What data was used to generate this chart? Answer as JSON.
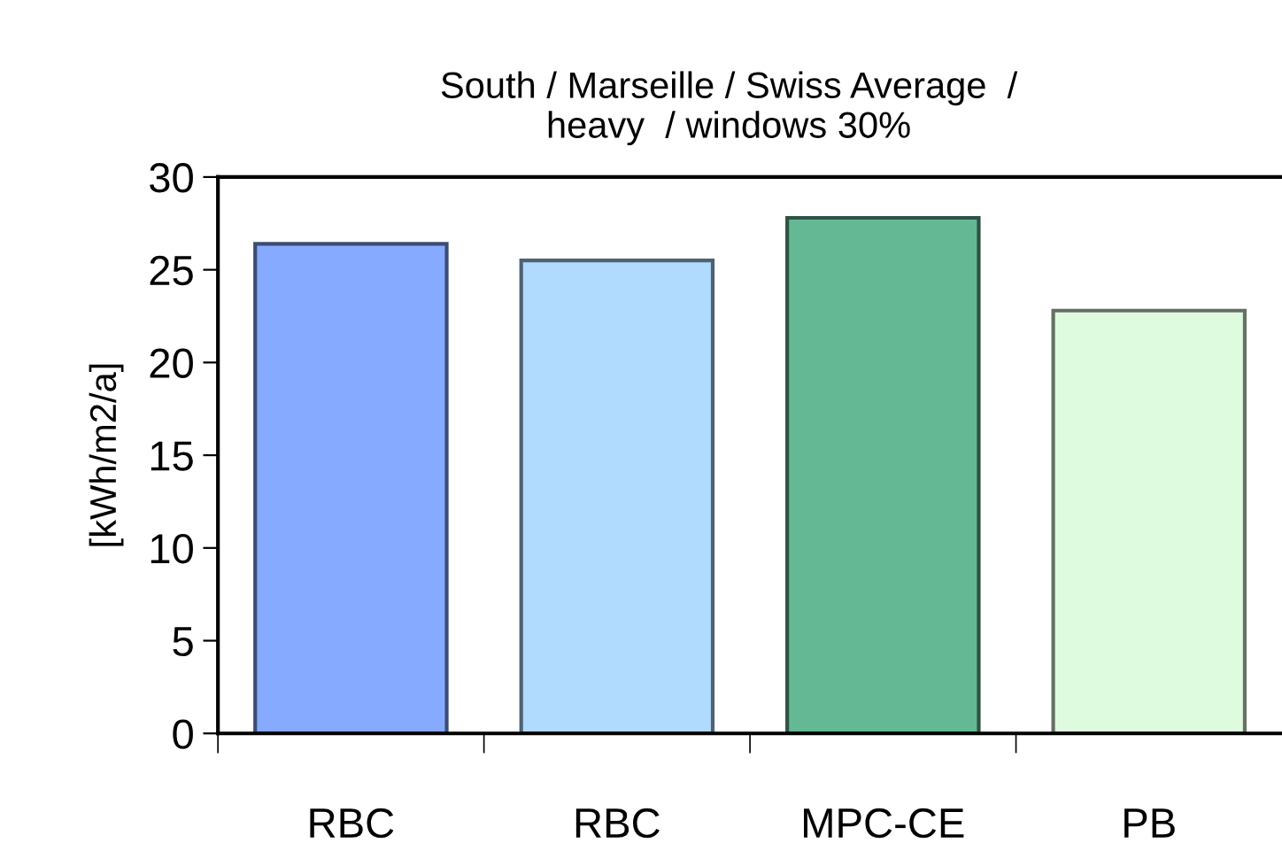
{
  "chart_data": {
    "type": "bar",
    "title": "South / Marseille / Swiss Average  /\nheavy  / windows 30%",
    "ylabel": "[kWh/m2/a]",
    "categories": [
      "RBC",
      "RBC",
      "MPC-CE",
      "PB"
    ],
    "values": [
      26.4,
      25.5,
      27.8,
      22.8
    ],
    "colors": [
      "#85aaff",
      "#b0dafe",
      "#64b894",
      "#dffbdf"
    ],
    "ylim": [
      0,
      30
    ],
    "yticks": [
      0,
      5,
      10,
      15,
      20,
      25,
      30
    ],
    "grid": false,
    "legend": false
  }
}
